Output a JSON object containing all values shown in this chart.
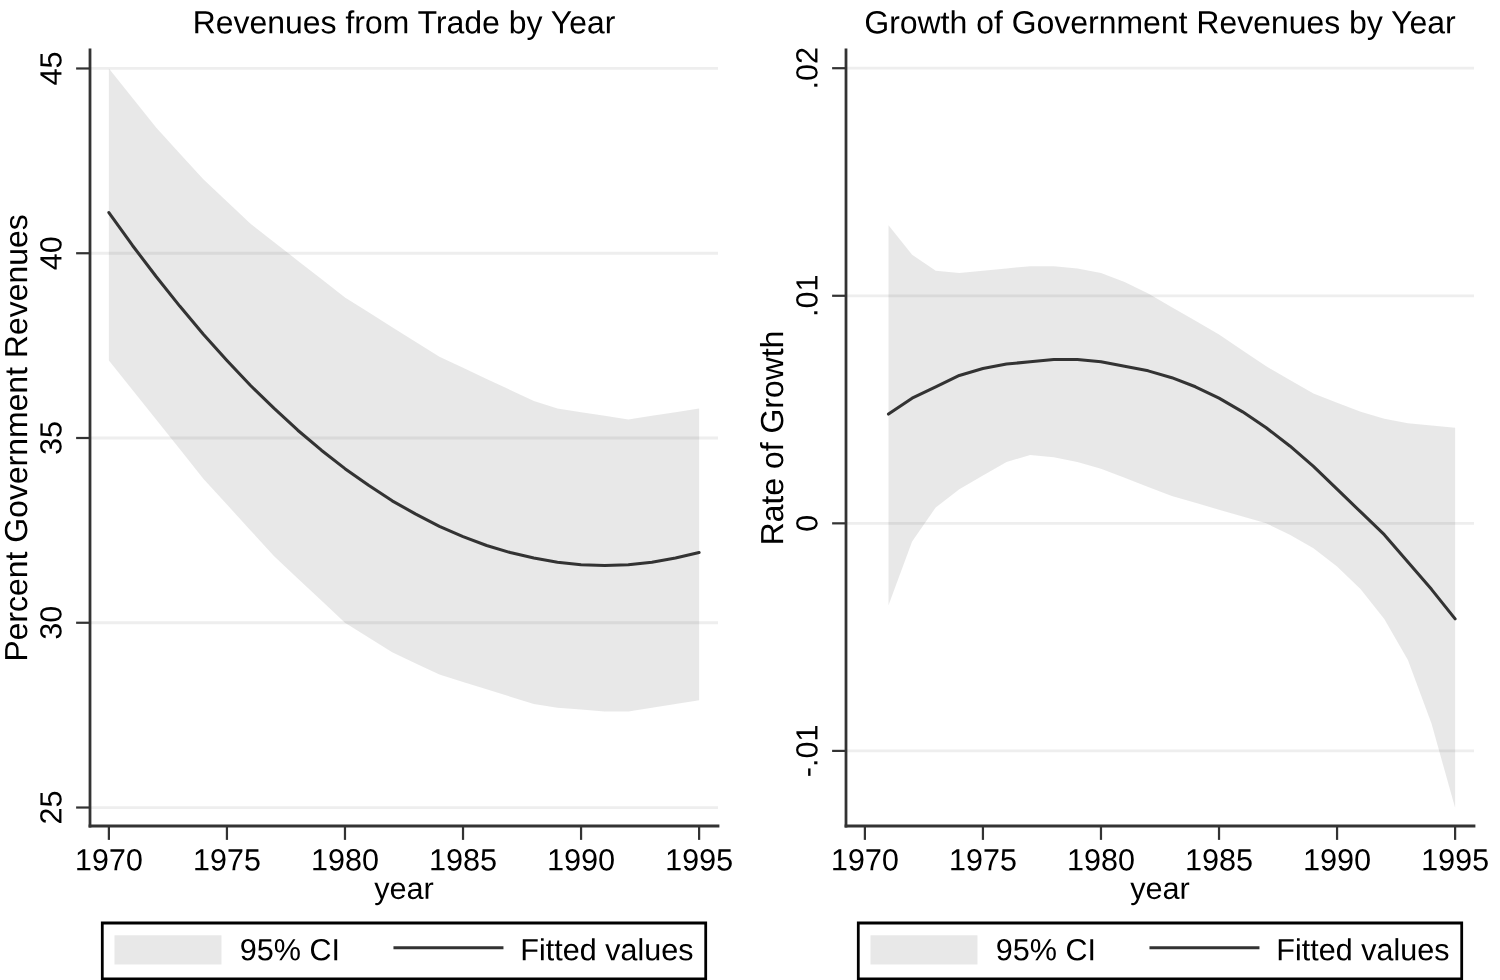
{
  "chart_data": [
    {
      "type": "line",
      "title": "Revenues from Trade by Year",
      "xlabel": "year",
      "ylabel": "Percent Government Revenues",
      "annotations": [
        "95% CI"
      ],
      "x": [
        1970,
        1971,
        1972,
        1973,
        1974,
        1975,
        1976,
        1977,
        1978,
        1979,
        1980,
        1981,
        1982,
        1983,
        1984,
        1985,
        1986,
        1987,
        1988,
        1989,
        1990,
        1991,
        1992,
        1993,
        1994,
        1995
      ],
      "xlim": [
        1969.2,
        1995.8
      ],
      "xticks": [
        1970,
        1975,
        1980,
        1985,
        1990,
        1995
      ],
      "ylim": [
        24.5,
        45.5
      ],
      "yticks": [
        25,
        30,
        35,
        40,
        45
      ],
      "grid": "y",
      "legend": "bottom",
      "series": [
        {
          "name": "Fitted values",
          "color": "#333333",
          "values": [
            41.1,
            40.21,
            39.37,
            38.57,
            37.81,
            37.1,
            36.42,
            35.8,
            35.21,
            34.67,
            34.17,
            33.72,
            33.3,
            32.94,
            32.61,
            32.33,
            32.09,
            31.9,
            31.75,
            31.64,
            31.57,
            31.55,
            31.57,
            31.64,
            31.75,
            31.9
          ],
          "lower": [
            37.1,
            36.3,
            35.5,
            34.7,
            33.9,
            33.2,
            32.5,
            31.8,
            31.2,
            30.6,
            30.0,
            29.6,
            29.2,
            28.9,
            28.6,
            28.4,
            28.2,
            28.0,
            27.8,
            27.7,
            27.65,
            27.6,
            27.6,
            27.7,
            27.8,
            27.9
          ],
          "upper": [
            45.0,
            44.2,
            43.4,
            42.7,
            42.0,
            41.4,
            40.8,
            40.3,
            39.8,
            39.3,
            38.8,
            38.4,
            38.0,
            37.6,
            37.2,
            36.9,
            36.6,
            36.3,
            36.0,
            35.8,
            35.7,
            35.6,
            35.5,
            35.6,
            35.7,
            35.8
          ]
        }
      ]
    },
    {
      "type": "line",
      "title": "Growth of Government Revenues by Year",
      "xlabel": "year",
      "ylabel": "Rate of Growth",
      "annotations": [
        "95% CI"
      ],
      "x": [
        1971,
        1972,
        1973,
        1974,
        1975,
        1976,
        1977,
        1978,
        1979,
        1980,
        1981,
        1982,
        1983,
        1984,
        1985,
        1986,
        1987,
        1988,
        1989,
        1990,
        1991,
        1992,
        1993,
        1994,
        1995
      ],
      "xlim": [
        1969.2,
        1995.8
      ],
      "xticks": [
        1970,
        1975,
        1980,
        1985,
        1990,
        1995
      ],
      "ylim": [
        -0.0133,
        0.0208
      ],
      "yticks": [
        {
          "value": -0.01,
          "label": "-.01"
        },
        0,
        {
          "value": 0.01,
          "label": ".01"
        },
        {
          "value": 0.02,
          "label": ".02"
        }
      ],
      "grid": "y",
      "legend": "bottom",
      "series": [
        {
          "name": "Fitted values",
          "color": "#333333",
          "values": [
            0.0048,
            0.0055,
            0.006,
            0.0065,
            0.0068,
            0.007,
            0.0071,
            0.0072,
            0.0072,
            0.0071,
            0.0069,
            0.0067,
            0.0064,
            0.006,
            0.0055,
            0.0049,
            0.0042,
            0.0034,
            0.0025,
            0.0015,
            0.0005,
            -0.0005,
            -0.0017,
            -0.0029,
            -0.0042
          ],
          "lower": [
            -0.0036,
            -0.0008,
            0.0007,
            0.0015,
            0.0021,
            0.0027,
            0.003,
            0.0029,
            0.0027,
            0.0024,
            0.002,
            0.0016,
            0.0012,
            0.0009,
            0.0006,
            0.0003,
            0.0,
            -0.0005,
            -0.0011,
            -0.0019,
            -0.0029,
            -0.0042,
            -0.006,
            -0.0088,
            -0.0125
          ],
          "upper": [
            0.0131,
            0.0118,
            0.0111,
            0.011,
            0.0111,
            0.0112,
            0.0113,
            0.0113,
            0.0112,
            0.011,
            0.0106,
            0.0101,
            0.0095,
            0.0089,
            0.0083,
            0.0076,
            0.0069,
            0.0063,
            0.0057,
            0.0053,
            0.0049,
            0.0046,
            0.0044,
            0.0043,
            0.0042
          ]
        }
      ]
    }
  ]
}
